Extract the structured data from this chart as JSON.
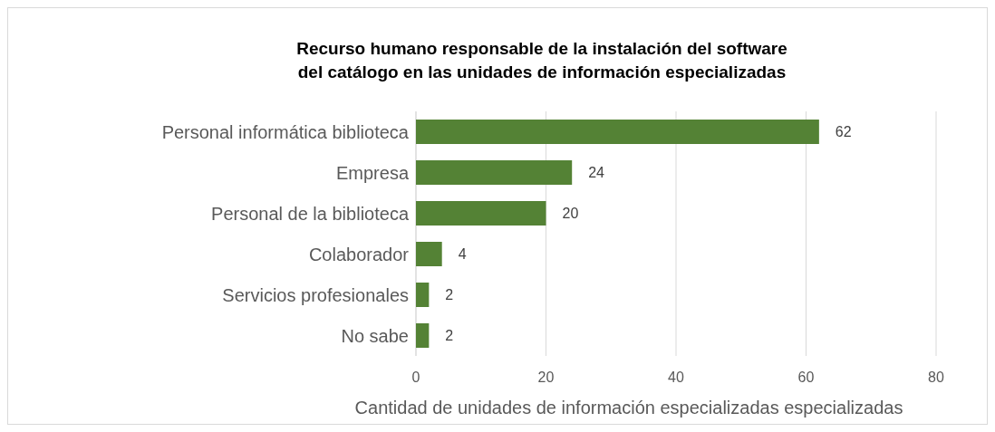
{
  "chart_data": {
    "type": "bar",
    "orientation": "horizontal",
    "title": "Recurso humano responsable de la instalación del software del catálogo en las unidades de información especializadas",
    "categories": [
      "Personal informática biblioteca",
      "Empresa",
      "Personal de la biblioteca",
      "Colaborador",
      "Servicios profesionales",
      "No sabe"
    ],
    "values": [
      62,
      24,
      20,
      4,
      2,
      2
    ],
    "color": "#548235",
    "data_labels": true,
    "xlim": [
      0,
      80
    ],
    "xticks": [
      0,
      20,
      40,
      60,
      80
    ],
    "grid": "x",
    "xlabel": "Cantidad de unidades de información especializadas especializadas"
  }
}
